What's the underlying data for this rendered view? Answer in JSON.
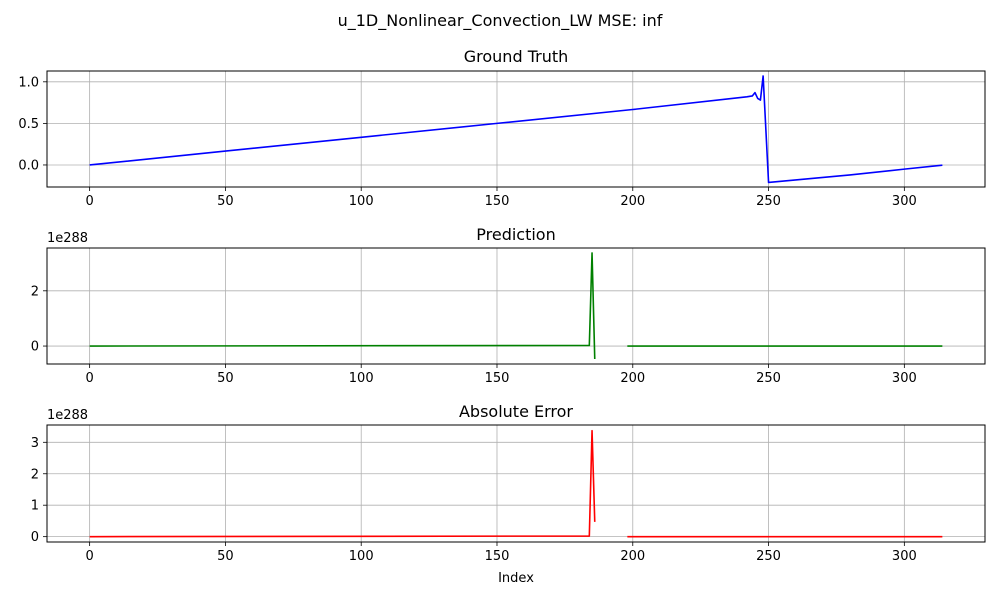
{
  "figure": {
    "suptitle": "u_1D_Nonlinear_Convection_LW MSE: inf",
    "xlabel": "Index"
  },
  "chart_data": [
    {
      "type": "line",
      "title": "Ground Truth",
      "color": "#0000ff",
      "offset_label": "",
      "xlim": [
        -15.7,
        329.7
      ],
      "ylim": [
        -0.265,
        1.13
      ],
      "xticks": [
        0,
        50,
        100,
        150,
        200,
        250,
        300
      ],
      "xtick_labels": [
        "0",
        "50",
        "100",
        "150",
        "200",
        "250",
        "300"
      ],
      "yticks": [
        0.0,
        0.5,
        1.0
      ],
      "ytick_labels": [
        "0.0",
        "0.5",
        "1.0"
      ],
      "grid": true,
      "segments": [
        {
          "x": [
            0,
            50,
            100,
            150,
            200,
            242,
            244,
            245,
            246,
            247,
            248,
            250,
            260,
            280,
            300,
            314
          ],
          "y": [
            0.0,
            0.167,
            0.333,
            0.5,
            0.667,
            0.82,
            0.83,
            0.87,
            0.8,
            0.78,
            1.07,
            -0.21,
            -0.18,
            -0.12,
            -0.05,
            -0.003
          ]
        }
      ]
    },
    {
      "type": "line",
      "title": "Prediction",
      "color": "#008000",
      "offset_label": "1e288",
      "xlim": [
        -15.7,
        329.7
      ],
      "ylim": [
        -0.65,
        3.55
      ],
      "xticks": [
        0,
        50,
        100,
        150,
        200,
        250,
        300
      ],
      "xtick_labels": [
        "0",
        "50",
        "100",
        "150",
        "200",
        "250",
        "300"
      ],
      "yticks": [
        0,
        2
      ],
      "ytick_labels": [
        "0",
        "2"
      ],
      "grid": true,
      "segments": [
        {
          "x": [
            0,
            184,
            185,
            186
          ],
          "y": [
            0,
            0.02,
            3.37,
            -0.47
          ]
        },
        {
          "x": [
            198,
            314
          ],
          "y": [
            0,
            0
          ]
        }
      ]
    },
    {
      "type": "line",
      "title": "Absolute Error",
      "color": "#ff0000",
      "offset_label": "1e288",
      "xlim": [
        -15.7,
        329.7
      ],
      "ylim": [
        -0.17,
        3.55
      ],
      "xticks": [
        0,
        50,
        100,
        150,
        200,
        250,
        300
      ],
      "xtick_labels": [
        "0",
        "50",
        "100",
        "150",
        "200",
        "250",
        "300"
      ],
      "yticks": [
        0,
        1,
        2,
        3
      ],
      "ytick_labels": [
        "0",
        "1",
        "2",
        "3"
      ],
      "grid": true,
      "segments": [
        {
          "x": [
            0,
            184,
            185,
            186
          ],
          "y": [
            0,
            0.02,
            3.37,
            0.47
          ]
        },
        {
          "x": [
            198,
            314
          ],
          "y": [
            0,
            0
          ]
        }
      ]
    }
  ]
}
